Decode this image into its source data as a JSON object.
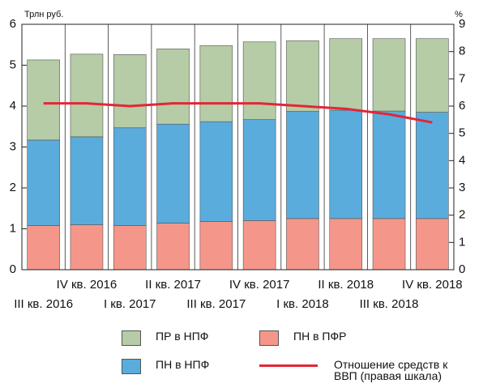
{
  "chart_data": {
    "type": "bar",
    "y_label": "Трлн руб.",
    "y2_label": "%",
    "categories": [
      "III кв. 2016",
      "IV кв. 2016",
      "I кв. 2017",
      "II кв. 2017",
      "III кв. 2017",
      "IV кв. 2017",
      "I кв. 2018",
      "II кв. 2018",
      "III кв. 2018",
      "IV кв. 2018"
    ],
    "series": [
      {
        "name": "ПН в ПФР",
        "color": "#f4978a",
        "values": [
          1.08,
          1.1,
          1.08,
          1.14,
          1.18,
          1.2,
          1.25,
          1.25,
          1.25,
          1.25
        ]
      },
      {
        "name": "ПН в НПФ",
        "color": "#5aacdc",
        "values": [
          2.09,
          2.15,
          2.39,
          2.42,
          2.44,
          2.47,
          2.62,
          2.65,
          2.63,
          2.6
        ]
      },
      {
        "name": "ПР в НПФ",
        "color": "#b5cca6",
        "values": [
          1.96,
          2.02,
          1.79,
          1.84,
          1.86,
          1.9,
          1.73,
          1.75,
          1.77,
          1.8
        ]
      },
      {
        "name": "Отношение средств к ВВП (правая шкала)",
        "color": "#e32636",
        "type": "line",
        "axis": "y2",
        "values": [
          6.1,
          6.1,
          6.0,
          6.1,
          6.1,
          6.1,
          6.0,
          5.9,
          5.7,
          5.4
        ]
      }
    ],
    "ylim": [
      0,
      6
    ],
    "yticks": [
      0,
      1,
      2,
      3,
      4,
      5,
      6
    ],
    "y2lim": [
      0,
      9
    ],
    "y2ticks": [
      0,
      1,
      2,
      3,
      4,
      5,
      6,
      7,
      8,
      9
    ]
  }
}
